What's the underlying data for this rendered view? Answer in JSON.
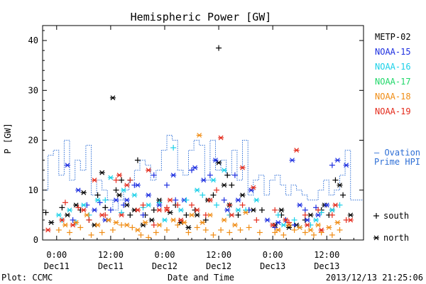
{
  "chart_data": {
    "type": "scatter",
    "title": "Hemispheric Power [GW]",
    "ylabel": "P [GW]",
    "xlabel": "Date and Time",
    "ylim": [
      0,
      43
    ],
    "xlim": [
      -0.13,
      2.84
    ],
    "yticks": [
      0,
      10,
      20,
      30,
      40
    ],
    "xticks": [
      {
        "value": 0.0,
        "time": "0:00",
        "date": "Dec11"
      },
      {
        "value": 0.5,
        "time": "12:00",
        "date": "Dec11"
      },
      {
        "value": 1.0,
        "time": "0:00",
        "date": "Dec12"
      },
      {
        "value": 1.5,
        "time": "12:00",
        "date": "Dec12"
      },
      {
        "value": 2.0,
        "time": "0:00",
        "date": "Dec13"
      },
      {
        "value": 2.5,
        "time": "12:00",
        "date": "Dec13"
      }
    ],
    "footer_left": "Plot: CCMC",
    "footer_right": "2013/12/13 21:25:06",
    "marker_legend": [
      {
        "symbol": "+",
        "label": "south"
      },
      {
        "symbol": "*",
        "label": "north"
      }
    ],
    "ovation": {
      "name_line1": "— Ovation",
      "name_line2": "Prime HPI",
      "color": "#2e6fd6",
      "x": [
        -0.13,
        -0.08,
        -0.03,
        0.02,
        0.07,
        0.12,
        0.17,
        0.22,
        0.27,
        0.32,
        0.37,
        0.42,
        0.47,
        0.52,
        0.57,
        0.62,
        0.67,
        0.72,
        0.77,
        0.82,
        0.87,
        0.92,
        0.97,
        1.02,
        1.07,
        1.12,
        1.17,
        1.22,
        1.27,
        1.32,
        1.37,
        1.42,
        1.47,
        1.52,
        1.57,
        1.62,
        1.67,
        1.72,
        1.77,
        1.82,
        1.87,
        1.92,
        1.97,
        2.02,
        2.07,
        2.12,
        2.17,
        2.22,
        2.27,
        2.32,
        2.37,
        2.42,
        2.47,
        2.52,
        2.57,
        2.62,
        2.67,
        2.72,
        2.84
      ],
      "y": [
        10,
        17,
        18,
        13,
        20,
        12,
        16,
        14,
        19,
        9,
        12,
        10,
        8,
        6,
        8,
        10,
        12,
        14,
        16,
        15,
        12,
        14,
        18,
        21,
        20,
        14,
        13,
        18,
        20,
        19,
        12,
        20,
        14,
        16,
        13,
        18,
        12,
        20,
        9,
        12,
        13,
        9,
        12,
        13,
        11,
        9,
        11,
        10,
        9,
        8,
        8,
        10,
        12,
        9,
        10,
        13,
        18,
        8,
        8
      ]
    },
    "series": [
      {
        "name": "METP-02",
        "color": "#000000",
        "south": [
          [
            -0.1,
            5.5
          ],
          [
            0.05,
            6.5
          ],
          [
            0.22,
            6
          ],
          [
            0.3,
            4
          ],
          [
            0.38,
            9
          ],
          [
            0.45,
            6.5
          ],
          [
            0.55,
            10
          ],
          [
            0.6,
            12
          ],
          [
            0.68,
            5
          ],
          [
            0.75,
            16
          ],
          [
            0.82,
            5
          ],
          [
            0.9,
            6
          ],
          [
            1.1,
            7
          ],
          [
            1.2,
            5
          ],
          [
            1.28,
            6
          ],
          [
            1.38,
            4
          ],
          [
            1.45,
            9
          ],
          [
            1.58,
            13
          ],
          [
            1.62,
            11
          ],
          [
            1.68,
            5
          ],
          [
            1.78,
            6
          ],
          [
            1.9,
            6
          ],
          [
            2.08,
            5
          ],
          [
            2.12,
            4
          ],
          [
            2.2,
            3
          ],
          [
            2.3,
            4
          ],
          [
            2.45,
            6
          ],
          [
            2.52,
            5
          ],
          [
            2.58,
            12
          ],
          [
            2.65,
            9
          ],
          [
            1.5,
            38.5
          ]
        ],
        "north": [
          [
            -0.05,
            3.5
          ],
          [
            0.1,
            5
          ],
          [
            0.18,
            7
          ],
          [
            0.25,
            9.5
          ],
          [
            0.35,
            3
          ],
          [
            0.42,
            13.5
          ],
          [
            0.48,
            4
          ],
          [
            0.52,
            28.5
          ],
          [
            0.58,
            9
          ],
          [
            0.65,
            7
          ],
          [
            0.72,
            6
          ],
          [
            0.8,
            3
          ],
          [
            0.88,
            4
          ],
          [
            0.95,
            8
          ],
          [
            1.05,
            5.5
          ],
          [
            1.15,
            3.5
          ],
          [
            1.22,
            2.5
          ],
          [
            1.3,
            5
          ],
          [
            1.4,
            8
          ],
          [
            1.5,
            15.5
          ],
          [
            1.55,
            11
          ],
          [
            1.6,
            7
          ],
          [
            1.72,
            9
          ],
          [
            1.82,
            6
          ],
          [
            2.02,
            3
          ],
          [
            2.08,
            6
          ],
          [
            2.15,
            2.5
          ],
          [
            2.22,
            3
          ],
          [
            2.35,
            5
          ],
          [
            2.48,
            7
          ],
          [
            2.55,
            6
          ],
          [
            2.62,
            11
          ],
          [
            2.72,
            5
          ]
        ]
      },
      {
        "name": "NOAA-15",
        "color": "#1c2ee0",
        "south": [
          [
            0.15,
            4
          ],
          [
            0.28,
            7
          ],
          [
            0.4,
            7.5
          ],
          [
            0.5,
            6
          ],
          [
            0.62,
            7
          ],
          [
            0.72,
            11
          ],
          [
            0.8,
            5
          ],
          [
            0.9,
            13
          ],
          [
            1.02,
            11
          ],
          [
            1.1,
            8
          ],
          [
            1.25,
            14
          ],
          [
            1.42,
            13
          ],
          [
            1.55,
            8
          ],
          [
            1.65,
            13
          ],
          [
            1.78,
            6
          ],
          [
            2.02,
            2.5
          ],
          [
            2.12,
            4
          ],
          [
            2.2,
            3
          ],
          [
            2.3,
            6
          ],
          [
            2.4,
            6.5
          ],
          [
            2.55,
            15
          ]
        ],
        "north": [
          [
            0.1,
            15
          ],
          [
            0.2,
            10
          ],
          [
            0.35,
            6
          ],
          [
            0.45,
            4
          ],
          [
            0.55,
            8
          ],
          [
            0.65,
            8
          ],
          [
            0.75,
            11
          ],
          [
            0.85,
            9
          ],
          [
            0.95,
            7
          ],
          [
            1.08,
            13
          ],
          [
            1.18,
            8
          ],
          [
            1.28,
            14.5
          ],
          [
            1.36,
            12
          ],
          [
            1.47,
            16
          ],
          [
            1.58,
            6
          ],
          [
            1.68,
            8
          ],
          [
            1.8,
            10
          ],
          [
            1.95,
            4
          ],
          [
            2.05,
            3.5
          ],
          [
            2.18,
            16
          ],
          [
            2.25,
            7
          ],
          [
            2.32,
            4
          ],
          [
            2.42,
            5
          ],
          [
            2.5,
            7
          ],
          [
            2.6,
            16
          ],
          [
            2.68,
            15
          ]
        ]
      },
      {
        "name": "NOAA-16",
        "color": "#1ad0e8",
        "south": [
          [
            0.05,
            4
          ],
          [
            0.18,
            3.5
          ],
          [
            0.3,
            5
          ],
          [
            0.45,
            8
          ],
          [
            0.6,
            5.5
          ],
          [
            0.68,
            12
          ],
          [
            0.8,
            6.5
          ],
          [
            0.95,
            7.5
          ],
          [
            1.08,
            18.5
          ],
          [
            1.2,
            8
          ],
          [
            1.35,
            9
          ],
          [
            1.48,
            7
          ],
          [
            1.6,
            5
          ],
          [
            1.75,
            6
          ],
          [
            2.05,
            5
          ],
          [
            2.2,
            4
          ],
          [
            2.35,
            3
          ],
          [
            2.45,
            5.5
          ],
          [
            2.62,
            7
          ]
        ],
        "north": [
          [
            0.02,
            5
          ],
          [
            0.12,
            6
          ],
          [
            0.25,
            7
          ],
          [
            0.38,
            8
          ],
          [
            0.5,
            12.5
          ],
          [
            0.62,
            10
          ],
          [
            0.72,
            9
          ],
          [
            0.85,
            7
          ],
          [
            1.0,
            4
          ],
          [
            1.15,
            6
          ],
          [
            1.3,
            10
          ],
          [
            1.45,
            12
          ],
          [
            1.55,
            14
          ],
          [
            1.68,
            6
          ],
          [
            1.85,
            8
          ],
          [
            2.1,
            3
          ],
          [
            2.25,
            2.5
          ],
          [
            2.4,
            4
          ],
          [
            2.55,
            6
          ]
        ]
      },
      {
        "name": "NOAA-17",
        "color": "#21d86a",
        "south": [],
        "north": []
      },
      {
        "name": "NOAA-18",
        "color": "#f08c14",
        "south": [
          [
            0.02,
            2
          ],
          [
            0.12,
            1.5
          ],
          [
            0.22,
            2.5
          ],
          [
            0.32,
            1
          ],
          [
            0.42,
            1.5
          ],
          [
            0.52,
            2
          ],
          [
            0.6,
            3
          ],
          [
            0.7,
            2.5
          ],
          [
            0.78,
            1
          ],
          [
            0.85,
            0.5
          ],
          [
            0.92,
            1.5
          ],
          [
            1.02,
            2
          ],
          [
            1.12,
            3
          ],
          [
            1.22,
            1.5
          ],
          [
            1.3,
            2.5
          ],
          [
            1.38,
            2
          ],
          [
            1.45,
            1
          ],
          [
            1.52,
            2
          ],
          [
            1.6,
            1.5
          ],
          [
            1.7,
            2
          ],
          [
            1.78,
            2.5
          ],
          [
            1.88,
            1.5
          ],
          [
            2.02,
            1.5
          ],
          [
            2.1,
            1
          ],
          [
            2.2,
            2
          ],
          [
            2.3,
            1.5
          ],
          [
            2.38,
            1
          ],
          [
            2.45,
            1.5
          ],
          [
            2.55,
            1
          ],
          [
            2.62,
            2
          ]
        ],
        "north": [
          [
            0.08,
            3
          ],
          [
            0.18,
            3.5
          ],
          [
            0.28,
            5
          ],
          [
            0.38,
            3
          ],
          [
            0.48,
            4
          ],
          [
            0.55,
            3.5
          ],
          [
            0.65,
            3
          ],
          [
            0.75,
            2
          ],
          [
            0.82,
            3.5
          ],
          [
            0.95,
            3
          ],
          [
            1.08,
            4
          ],
          [
            1.18,
            3.5
          ],
          [
            1.25,
            5
          ],
          [
            1.35,
            3.5
          ],
          [
            1.42,
            5
          ],
          [
            1.55,
            4
          ],
          [
            1.65,
            3
          ],
          [
            1.75,
            5.5
          ],
          [
            2.05,
            2
          ],
          [
            2.15,
            3
          ],
          [
            2.25,
            2.5
          ],
          [
            2.35,
            2
          ],
          [
            2.42,
            3
          ],
          [
            2.52,
            2.5
          ],
          [
            2.6,
            3.5
          ],
          [
            1.32,
            21
          ]
        ]
      },
      {
        "name": "NOAA-19",
        "color": "#e42b1c",
        "south": [
          [
            0.08,
            7.5
          ],
          [
            0.2,
            6.5
          ],
          [
            0.3,
            4
          ],
          [
            0.45,
            5
          ],
          [
            0.55,
            12
          ],
          [
            0.68,
            12
          ],
          [
            0.8,
            7
          ],
          [
            0.9,
            3
          ],
          [
            1.02,
            6.5
          ],
          [
            1.12,
            7
          ],
          [
            1.25,
            7
          ],
          [
            1.38,
            5
          ],
          [
            1.48,
            10
          ],
          [
            1.6,
            7
          ],
          [
            1.72,
            7
          ],
          [
            1.85,
            4
          ],
          [
            2.02,
            6
          ],
          [
            2.15,
            3.5
          ],
          [
            2.3,
            5
          ],
          [
            2.42,
            6
          ],
          [
            2.55,
            5
          ],
          [
            2.68,
            4
          ]
        ],
        "north": [
          [
            -0.08,
            2
          ],
          [
            0.05,
            4
          ],
          [
            0.15,
            3
          ],
          [
            0.25,
            6
          ],
          [
            0.35,
            12
          ],
          [
            0.42,
            5
          ],
          [
            0.58,
            13
          ],
          [
            0.65,
            11
          ],
          [
            0.75,
            6
          ],
          [
            0.85,
            14
          ],
          [
            0.95,
            6
          ],
          [
            1.05,
            8
          ],
          [
            1.15,
            4
          ],
          [
            1.3,
            6
          ],
          [
            1.42,
            8
          ],
          [
            1.52,
            20.5
          ],
          [
            1.62,
            5
          ],
          [
            1.72,
            14.5
          ],
          [
            1.82,
            10.5
          ],
          [
            2.0,
            3
          ],
          [
            2.12,
            4
          ],
          [
            2.22,
            18
          ],
          [
            2.32,
            3
          ],
          [
            2.45,
            2
          ],
          [
            2.58,
            7
          ],
          [
            2.72,
            4
          ],
          [
            1.02,
            6
          ],
          [
            0.6,
            5
          ]
        ]
      }
    ]
  }
}
